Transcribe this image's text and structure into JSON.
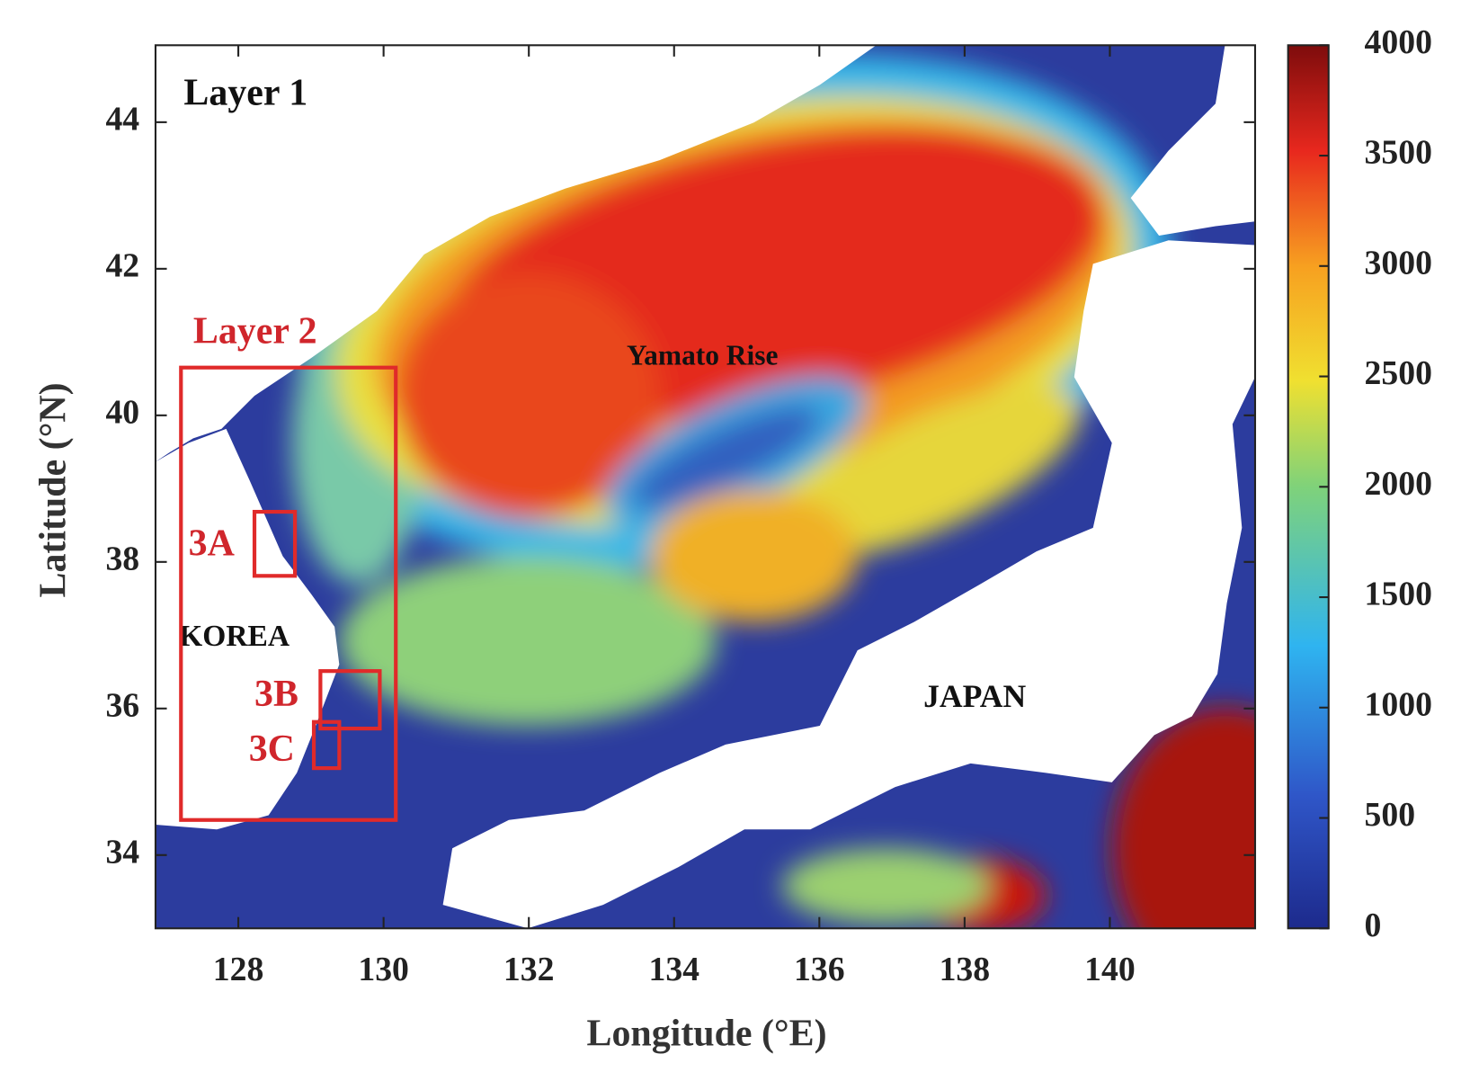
{
  "map": {
    "panel_label": "Layer 1",
    "x_axis": {
      "label": "Longitude (°E)",
      "xlim": [
        126.86,
        142
      ],
      "xticks": [
        128,
        130,
        132,
        134,
        136,
        138,
        140
      ]
    },
    "y_axis": {
      "label": "Latitude (°N)",
      "ylim": [
        33,
        45.05
      ],
      "yticks": [
        34,
        36,
        38,
        40,
        42,
        44
      ]
    },
    "colorbar": {
      "clim": [
        0,
        4000
      ],
      "ticks": [
        0,
        500,
        1000,
        1500,
        2000,
        2500,
        3000,
        3500,
        4000
      ]
    },
    "labels": [
      "Layer 2",
      "Yamato Rise",
      "3A",
      "KOREA",
      "3B",
      "3C",
      "JAPAN"
    ]
  }
}
